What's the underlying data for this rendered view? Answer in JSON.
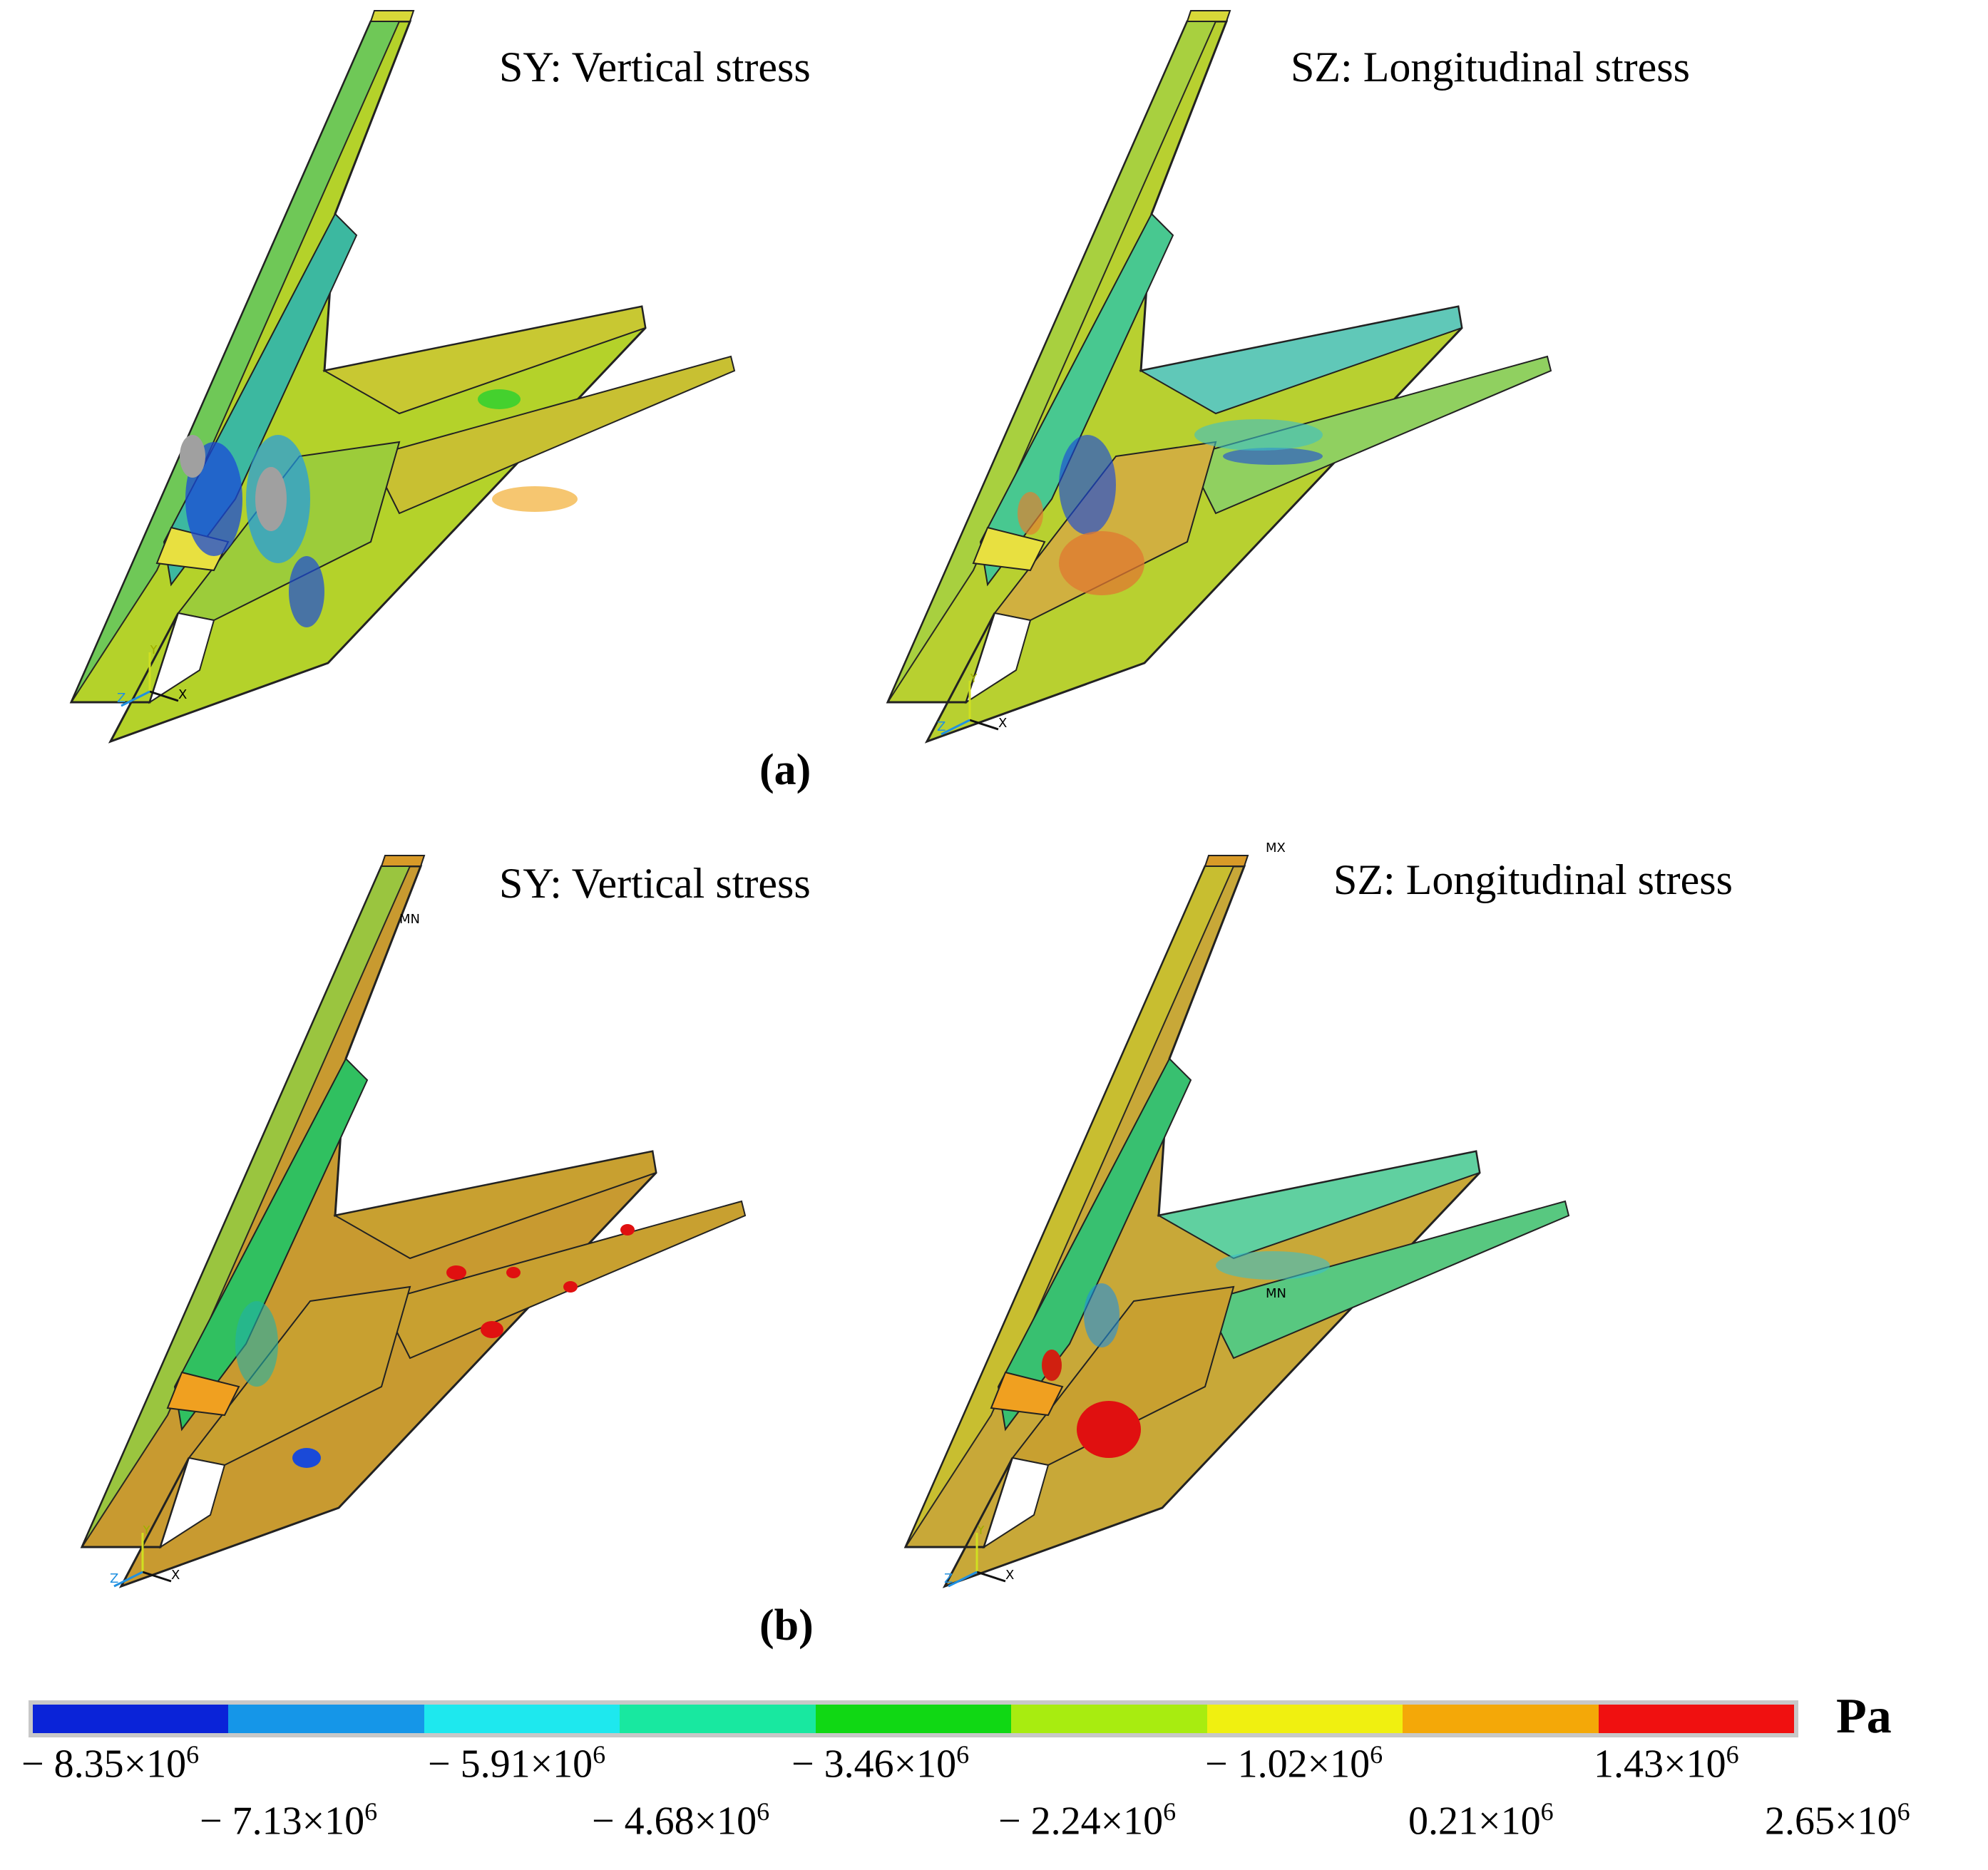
{
  "figure": {
    "panels": [
      {
        "title": "SY: Vertical stress"
      },
      {
        "title": "SZ: Longitudinal stress"
      },
      {
        "title": "SY: Vertical stress",
        "marker": "MN"
      },
      {
        "title": "SZ: Longitudinal stress",
        "marker_top": "MX",
        "marker_mid": "MN"
      }
    ],
    "row_labels": {
      "a": "(a)",
      "b": "(b)"
    },
    "axes": {
      "x": "X",
      "y": "Y",
      "z": "Z"
    }
  },
  "legend": {
    "unit": "Pa",
    "colors": [
      "#0a23d8",
      "#1596e8",
      "#1ee8ee",
      "#18e8a0",
      "#10d814",
      "#a8ec10",
      "#f0f010",
      "#f4a808",
      "#f01010"
    ],
    "ticks_upper": [
      {
        "label": "− 8.35×10",
        "exp": "6"
      },
      {
        "label": "− 5.91×10",
        "exp": "6"
      },
      {
        "label": "− 3.46×10",
        "exp": "6"
      },
      {
        "label": "− 1.02×10",
        "exp": "6"
      },
      {
        "label": "1.43×10",
        "exp": "6"
      }
    ],
    "ticks_lower": [
      {
        "label": "− 7.13×10",
        "exp": "6"
      },
      {
        "label": "− 4.68×10",
        "exp": "6"
      },
      {
        "label": "− 2.24×10",
        "exp": "6"
      },
      {
        "label": "0.21×10",
        "exp": "6"
      },
      {
        "label": "2.65×10",
        "exp": "6"
      }
    ]
  }
}
